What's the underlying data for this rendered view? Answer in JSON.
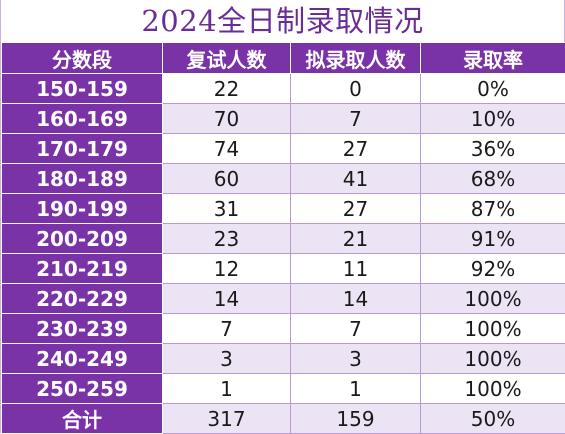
{
  "title": "2024全日制录取情况",
  "headers": [
    "分数段",
    "复试人数",
    "拟录取人数",
    "录取率"
  ],
  "rows": [
    {
      "range": "150-159",
      "retest": "22",
      "admit": "0",
      "rate": "0%"
    },
    {
      "range": "160-169",
      "retest": "70",
      "admit": "7",
      "rate": "10%"
    },
    {
      "range": "170-179",
      "retest": "74",
      "admit": "27",
      "rate": "36%"
    },
    {
      "range": "180-189",
      "retest": "60",
      "admit": "41",
      "rate": "68%"
    },
    {
      "range": "190-199",
      "retest": "31",
      "admit": "27",
      "rate": "87%"
    },
    {
      "range": "200-209",
      "retest": "23",
      "admit": "21",
      "rate": "91%"
    },
    {
      "range": "210-219",
      "retest": "12",
      "admit": "11",
      "rate": "92%"
    },
    {
      "range": "220-229",
      "retest": "14",
      "admit": "14",
      "rate": "100%"
    },
    {
      "range": "230-239",
      "retest": "7",
      "admit": "7",
      "rate": "100%"
    },
    {
      "range": "240-249",
      "retest": "3",
      "admit": "3",
      "rate": "100%"
    },
    {
      "range": "250-259",
      "retest": "1",
      "admit": "1",
      "rate": "100%"
    }
  ],
  "total": {
    "range": "合计",
    "retest": "317",
    "admit": "159",
    "rate": "50%"
  },
  "colors": {
    "header": "#7a33a6",
    "title": "#6a2c95",
    "stripe": "#ece3f4"
  }
}
